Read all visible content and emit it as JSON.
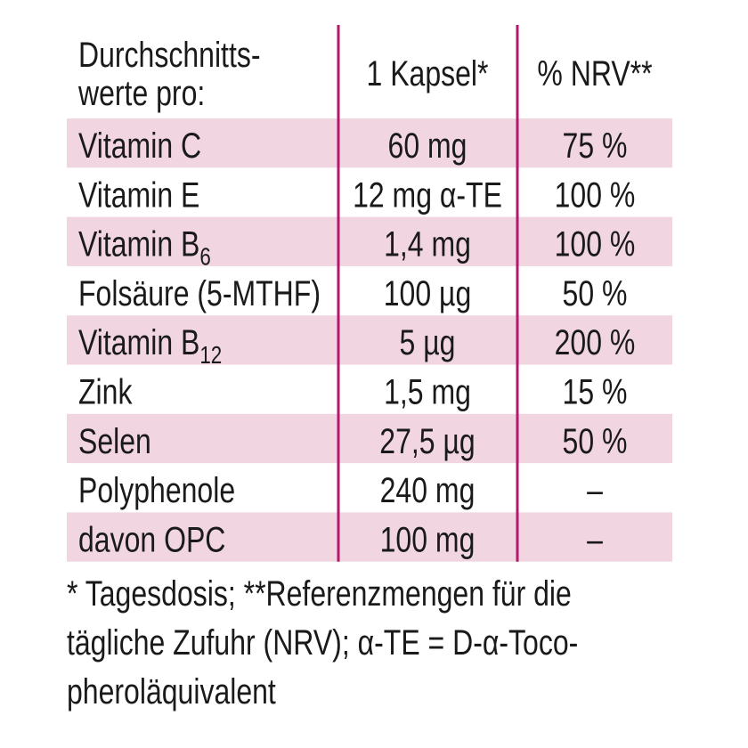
{
  "table": {
    "header": {
      "name": [
        "Durchschnitts-",
        "werte pro:"
      ],
      "amount": "1 Kapsel*",
      "nrv": "% NRV**"
    },
    "rows": [
      {
        "name": "Vitamin C",
        "amount": "60 mg",
        "nrv": "75 %"
      },
      {
        "name": "Vitamin E",
        "amount": "12 mg α-TE",
        "nrv": "100 %"
      },
      {
        "name": "Vitamin B",
        "name_sub": "6",
        "amount": "1,4 mg",
        "nrv": "100 %"
      },
      {
        "name": "Folsäure (5-MTHF)",
        "amount": "100 µg",
        "nrv": "50 %"
      },
      {
        "name": "Vitamin B",
        "name_sub": "12",
        "amount": "5 µg",
        "nrv": "200 %"
      },
      {
        "name": "Zink",
        "amount": "1,5 mg",
        "nrv": "15 %"
      },
      {
        "name": "Selen",
        "amount": "27,5 µg",
        "nrv": "50 %"
      },
      {
        "name": "Polyphenole",
        "amount": "240 mg",
        "nrv": "–"
      },
      {
        "name": "davon OPC",
        "amount": "100 mg",
        "nrv": "–"
      }
    ]
  },
  "footnote": [
    "* Tagesdosis; **Referenzmengen für die",
    "tägliche Zufuhr (NRV); α-TE = D-α-Toco-",
    "pheroläquivalent"
  ]
}
